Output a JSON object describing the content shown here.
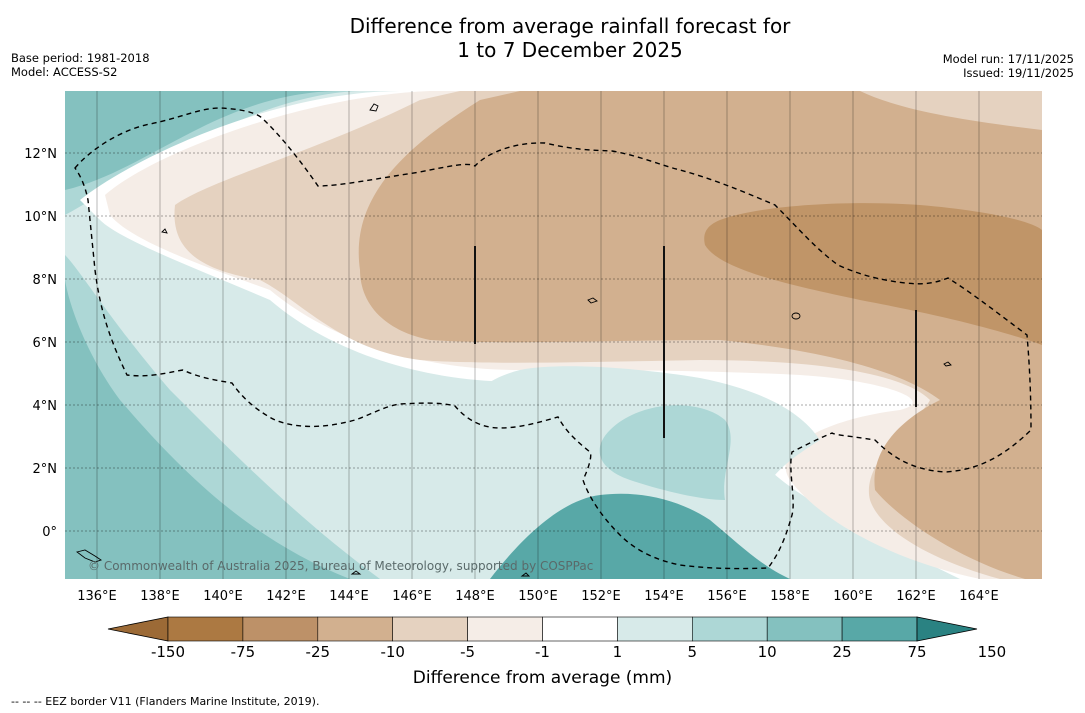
{
  "title": {
    "line1": "Difference from average rainfall forecast for",
    "line2": "1 to 7 December 2025"
  },
  "meta_left": {
    "base_period": "Base period: 1981-2018",
    "model": "Model: ACCESS-S2"
  },
  "meta_right": {
    "model_run": "Model run: 17/11/2025",
    "issued": "Issued: 19/11/2025"
  },
  "map": {
    "lon_range": [
      135,
      166
    ],
    "lat_range": [
      -1.5,
      14
    ],
    "lon_ticks": [
      "136°E",
      "138°E",
      "140°E",
      "142°E",
      "144°E",
      "146°E",
      "148°E",
      "150°E",
      "152°E",
      "154°E",
      "156°E",
      "158°E",
      "160°E",
      "162°E",
      "164°E"
    ],
    "lat_ticks": [
      "12°N",
      "10°N",
      "8°N",
      "6°N",
      "4°N",
      "2°N",
      "0°"
    ],
    "copyright": "© Commonwealth of Australia 2025, Bureau of Meteorology, supported by COSPPac"
  },
  "colorbar": {
    "labels": [
      "-150",
      "-75",
      "-25",
      "-10",
      "-5",
      "-1",
      "1",
      "5",
      "10",
      "25",
      "75",
      "150"
    ],
    "colors": [
      "#ac7942",
      "#bd9168",
      "#d2b08f",
      "#e5d2c0",
      "#f5ede7",
      "#ffffff",
      "#d7eae9",
      "#add7d6",
      "#84c1bf",
      "#58a8a7",
      "#34948f",
      "#2a8282"
    ],
    "title": "Difference from average (mm)"
  },
  "footnote": "--  --  -- EEZ border V11 (Flanders Marine Institute, 2019)."
}
